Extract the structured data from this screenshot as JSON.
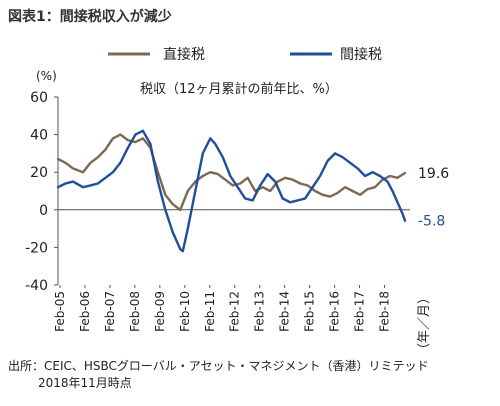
{
  "figure_title": "図表1：間接税収入が減少",
  "source_line1": "出所：CEIC、HSBCグローバル・アセット・マネジメント（香港）リミテッド",
  "source_line2": "2018年11月時点",
  "colors": {
    "direct": "#7a6a52",
    "indirect": "#1f4e9c",
    "axis": "#555555"
  },
  "chart_data": {
    "type": "line",
    "title": "税収（12ヶ月累計の前年比、%）",
    "ylabel": "(%)",
    "xlabel": "（年／月）",
    "ylim": [
      -40,
      60
    ],
    "yticks": [
      60,
      40,
      20,
      0,
      -20,
      -40
    ],
    "xlim": [
      2005.0,
      2019.1
    ],
    "xtick_labels": [
      "Feb-05",
      "Feb-06",
      "Feb-07",
      "Feb-08",
      "Feb-09",
      "Feb-10",
      "Feb-11",
      "Feb-12",
      "Feb-13",
      "Feb-14",
      "Feb-15",
      "Feb-16",
      "Feb-17",
      "Feb-18"
    ],
    "xtick_positions": [
      2005.08,
      2006.08,
      2007.08,
      2008.08,
      2009.08,
      2010.08,
      2011.08,
      2012.08,
      2013.08,
      2014.08,
      2015.08,
      2016.08,
      2017.08,
      2018.08
    ],
    "grid": false,
    "legend_position": "top",
    "series": [
      {
        "name": "直接税",
        "end_label": "19.6",
        "x": [
          2005.0,
          2005.3,
          2005.6,
          2006.0,
          2006.3,
          2006.6,
          2006.9,
          2007.2,
          2007.5,
          2007.8,
          2008.1,
          2008.4,
          2008.7,
          2009.0,
          2009.3,
          2009.6,
          2009.9,
          2010.2,
          2010.5,
          2010.8,
          2011.1,
          2011.4,
          2011.7,
          2012.0,
          2012.3,
          2012.6,
          2012.9,
          2013.2,
          2013.5,
          2013.8,
          2014.1,
          2014.4,
          2014.7,
          2015.0,
          2015.3,
          2015.6,
          2015.9,
          2016.2,
          2016.5,
          2016.8,
          2017.1,
          2017.4,
          2017.7,
          2018.0,
          2018.3,
          2018.6,
          2018.9
        ],
        "values": [
          27,
          25,
          22,
          20,
          25,
          28,
          32,
          38,
          40,
          37,
          36,
          38,
          33,
          20,
          8,
          3,
          0,
          10,
          15,
          18,
          20,
          19,
          16,
          13,
          14,
          17,
          10,
          12,
          10,
          15,
          17,
          16,
          14,
          13,
          10,
          8,
          7,
          9,
          12,
          10,
          8,
          11,
          12,
          16,
          18,
          17,
          19.6
        ]
      },
      {
        "name": "間接税",
        "end_label": "-5.8",
        "x": [
          2005.0,
          2005.3,
          2005.6,
          2006.0,
          2006.3,
          2006.6,
          2006.9,
          2007.2,
          2007.5,
          2007.8,
          2008.1,
          2008.4,
          2008.7,
          2009.0,
          2009.3,
          2009.6,
          2009.9,
          2010.0,
          2010.2,
          2010.5,
          2010.8,
          2011.1,
          2011.3,
          2011.6,
          2011.9,
          2012.2,
          2012.5,
          2012.8,
          2013.1,
          2013.4,
          2013.7,
          2014.0,
          2014.3,
          2014.6,
          2014.9,
          2015.2,
          2015.5,
          2015.8,
          2016.1,
          2016.4,
          2016.7,
          2017.0,
          2017.3,
          2017.6,
          2017.9,
          2018.2,
          2018.4,
          2018.6,
          2018.8,
          2018.9
        ],
        "values": [
          12,
          14,
          15,
          12,
          13,
          14,
          17,
          20,
          25,
          33,
          40,
          42,
          35,
          15,
          0,
          -12,
          -21,
          -22,
          -10,
          10,
          30,
          38,
          35,
          28,
          18,
          12,
          6,
          5,
          13,
          19,
          15,
          6,
          4,
          5,
          6,
          12,
          18,
          26,
          30,
          28,
          25,
          22,
          18,
          20,
          18,
          15,
          10,
          4,
          -2,
          -5.8
        ]
      }
    ]
  }
}
